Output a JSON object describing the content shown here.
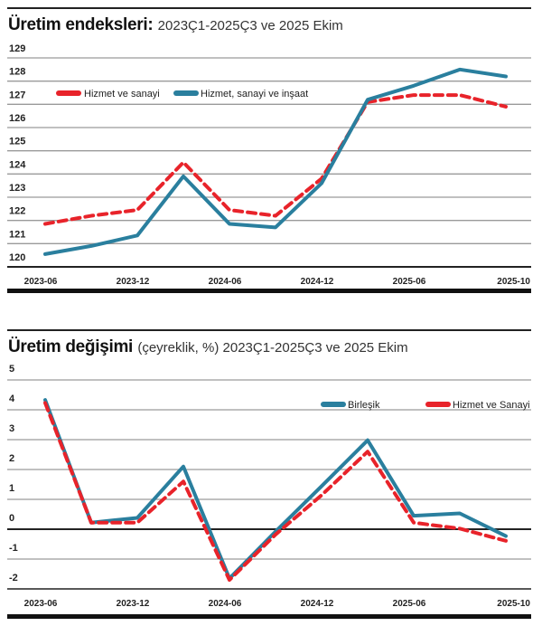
{
  "chart_data": [
    {
      "type": "line",
      "title": "Üretim endeksleri:",
      "subtitle": "2023Ç1-2025Ç3 ve 2025 Ekim",
      "x_tick_labels": [
        "2023-06",
        "2023-12",
        "2024-06",
        "2024-12",
        "2025-06",
        "2025-10"
      ],
      "x_tick_positions": [
        0,
        2,
        4,
        6,
        8,
        10
      ],
      "y_ticks": [
        120,
        121,
        122,
        123,
        124,
        125,
        126,
        127,
        128,
        129
      ],
      "ylim": [
        120,
        129
      ],
      "grid": true,
      "legend_position": "top-left",
      "series": [
        {
          "name": "Hizmet ve sanayi",
          "color": "#e8232a",
          "dashed": true,
          "values": [
            121.85,
            122.2,
            122.45,
            124.5,
            122.45,
            122.2,
            123.8,
            127.1,
            127.4,
            127.4,
            126.9
          ]
        },
        {
          "name": "Hizmet, sanayi ve inşaat",
          "color": "#2a7f9e",
          "dashed": false,
          "values": [
            120.55,
            120.9,
            121.35,
            123.9,
            121.85,
            121.7,
            123.6,
            127.2,
            127.8,
            128.5,
            128.2
          ]
        }
      ]
    },
    {
      "type": "line",
      "title": "Üretim değişimi",
      "subtitle": "(çeyreklik, %) 2023Ç1-2025Ç3 ve 2025 Ekim",
      "x_tick_labels": [
        "2023-06",
        "2023-12",
        "2024-06",
        "2024-12",
        "2025-06",
        "2025-10"
      ],
      "x_tick_positions": [
        0,
        2,
        4,
        6,
        8,
        10
      ],
      "y_ticks": [
        -2,
        -1,
        0,
        1,
        2,
        3,
        4,
        5
      ],
      "ylim": [
        -2,
        5
      ],
      "grid": true,
      "legend_position": "top-right",
      "series": [
        {
          "name": "Birleşik",
          "color": "#2a7f9e",
          "dashed": false,
          "values": [
            4.33,
            0.22,
            0.38,
            2.1,
            -1.65,
            -0.08,
            1.44,
            2.98,
            0.45,
            0.53,
            -0.23
          ]
        },
        {
          "name": "Hizmet ve Sanayi",
          "color": "#e8232a",
          "dashed": true,
          "values": [
            4.23,
            0.22,
            0.22,
            1.6,
            -1.7,
            -0.18,
            1.14,
            2.6,
            0.22,
            0.02,
            -0.39
          ]
        }
      ]
    }
  ]
}
